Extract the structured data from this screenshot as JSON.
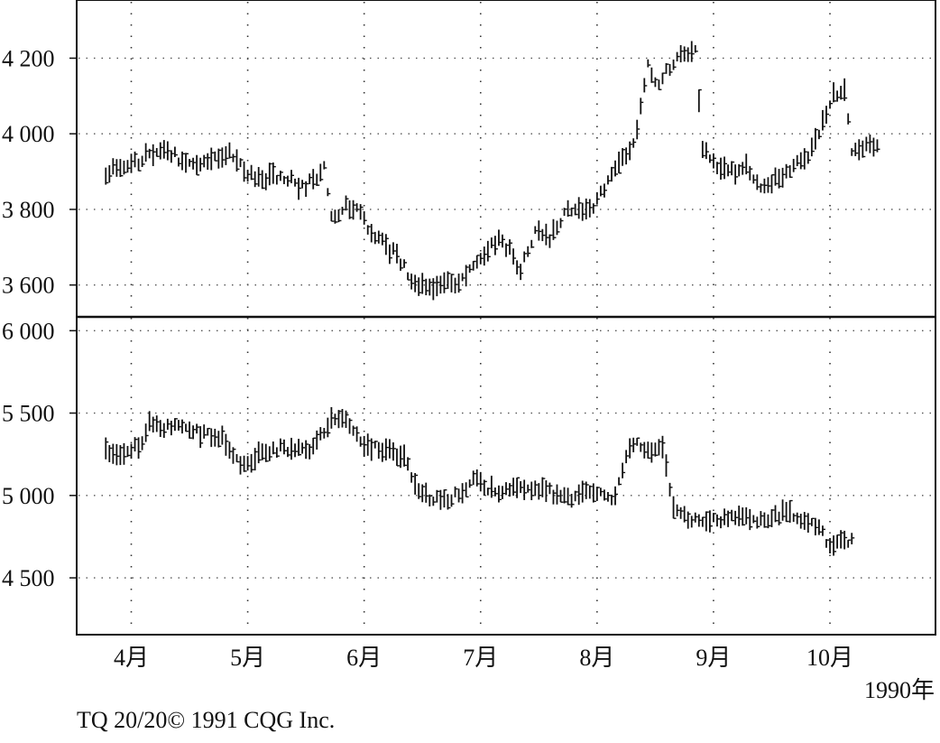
{
  "credit": "TQ 20/20© 1991 CQG Inc.",
  "x_axis": {
    "months": [
      {
        "label": "4月",
        "index": 1
      },
      {
        "label": "5月",
        "index": 33
      },
      {
        "label": "6月",
        "index": 65
      },
      {
        "label": "7月",
        "index": 97
      },
      {
        "label": "8月",
        "index": 129
      },
      {
        "label": "9月",
        "index": 161
      },
      {
        "label": "10月",
        "index": 193
      }
    ],
    "year_label": "1990年",
    "index_range": [
      -14,
      222
    ]
  },
  "chart_data": [
    {
      "type": "bar",
      "panel": "upper",
      "ylim": [
        3530,
        4330
      ],
      "yticks": [
        {
          "value": 3600,
          "label": "3 600"
        },
        {
          "value": 3800,
          "label": "3 800"
        },
        {
          "value": 4000,
          "label": "4 000"
        },
        {
          "value": 4200,
          "label": "4 200"
        }
      ],
      "grid": true,
      "anchors": [
        [
          -6,
          3900
        ],
        [
          0,
          3910
        ],
        [
          5,
          3940
        ],
        [
          10,
          3960
        ],
        [
          14,
          3935
        ],
        [
          18,
          3920
        ],
        [
          22,
          3930
        ],
        [
          28,
          3950
        ],
        [
          32,
          3900
        ],
        [
          36,
          3880
        ],
        [
          40,
          3890
        ],
        [
          44,
          3880
        ],
        [
          48,
          3860
        ],
        [
          52,
          3880
        ],
        [
          54,
          3905
        ],
        [
          56,
          3780
        ],
        [
          60,
          3810
        ],
        [
          63,
          3810
        ],
        [
          67,
          3740
        ],
        [
          71,
          3700
        ],
        [
          74,
          3680
        ],
        [
          78,
          3610
        ],
        [
          82,
          3600
        ],
        [
          86,
          3600
        ],
        [
          90,
          3610
        ],
        [
          93,
          3620
        ],
        [
          96,
          3660
        ],
        [
          99,
          3700
        ],
        [
          102,
          3720
        ],
        [
          105,
          3690
        ],
        [
          108,
          3640
        ],
        [
          112,
          3740
        ],
        [
          116,
          3720
        ],
        [
          120,
          3790
        ],
        [
          124,
          3800
        ],
        [
          128,
          3810
        ],
        [
          131,
          3860
        ],
        [
          134,
          3920
        ],
        [
          137,
          3940
        ],
        [
          140,
          4010
        ],
        [
          143,
          4180
        ],
        [
          146,
          4130
        ],
        [
          149,
          4180
        ],
        [
          152,
          4200
        ],
        [
          156,
          4220
        ],
        [
          158,
          3960
        ],
        [
          162,
          3920
        ],
        [
          166,
          3900
        ],
        [
          170,
          3910
        ],
        [
          174,
          3860
        ],
        [
          178,
          3880
        ],
        [
          182,
          3910
        ],
        [
          186,
          3930
        ],
        [
          190,
          4000
        ],
        [
          194,
          4100
        ],
        [
          197,
          4110
        ],
        [
          199,
          3950
        ],
        [
          202,
          3960
        ],
        [
          206,
          3980
        ]
      ]
    },
    {
      "type": "bar",
      "panel": "lower",
      "ylim": [
        4210,
        6040
      ],
      "yticks": [
        {
          "value": 4500,
          "label": "4 500"
        },
        {
          "value": 5000,
          "label": "5 000"
        },
        {
          "value": 5500,
          "label": "5 500"
        },
        {
          "value": 6000,
          "label": "6 000"
        }
      ],
      "grid": true,
      "anchors": [
        [
          -6,
          5260
        ],
        [
          0,
          5270
        ],
        [
          4,
          5300
        ],
        [
          6,
          5450
        ],
        [
          10,
          5420
        ],
        [
          14,
          5400
        ],
        [
          20,
          5380
        ],
        [
          26,
          5360
        ],
        [
          30,
          5200
        ],
        [
          34,
          5220
        ],
        [
          38,
          5260
        ],
        [
          42,
          5280
        ],
        [
          46,
          5300
        ],
        [
          50,
          5280
        ],
        [
          54,
          5380
        ],
        [
          56,
          5480
        ],
        [
          60,
          5460
        ],
        [
          64,
          5320
        ],
        [
          68,
          5300
        ],
        [
          72,
          5260
        ],
        [
          76,
          5220
        ],
        [
          80,
          5000
        ],
        [
          84,
          4990
        ],
        [
          88,
          4980
        ],
        [
          92,
          5020
        ],
        [
          95,
          5100
        ],
        [
          98,
          5060
        ],
        [
          102,
          5000
        ],
        [
          106,
          5040
        ],
        [
          110,
          5040
        ],
        [
          114,
          5030
        ],
        [
          118,
          5010
        ],
        [
          122,
          4990
        ],
        [
          126,
          5010
        ],
        [
          130,
          5000
        ],
        [
          134,
          5000
        ],
        [
          137,
          5260
        ],
        [
          140,
          5300
        ],
        [
          144,
          5280
        ],
        [
          147,
          5280
        ],
        [
          150,
          4930
        ],
        [
          154,
          4860
        ],
        [
          158,
          4860
        ],
        [
          162,
          4840
        ],
        [
          166,
          4860
        ],
        [
          170,
          4850
        ],
        [
          174,
          4860
        ],
        [
          178,
          4880
        ],
        [
          182,
          4900
        ],
        [
          186,
          4850
        ],
        [
          190,
          4820
        ],
        [
          192,
          4710
        ],
        [
          196,
          4720
        ],
        [
          199,
          4720
        ]
      ]
    }
  ]
}
